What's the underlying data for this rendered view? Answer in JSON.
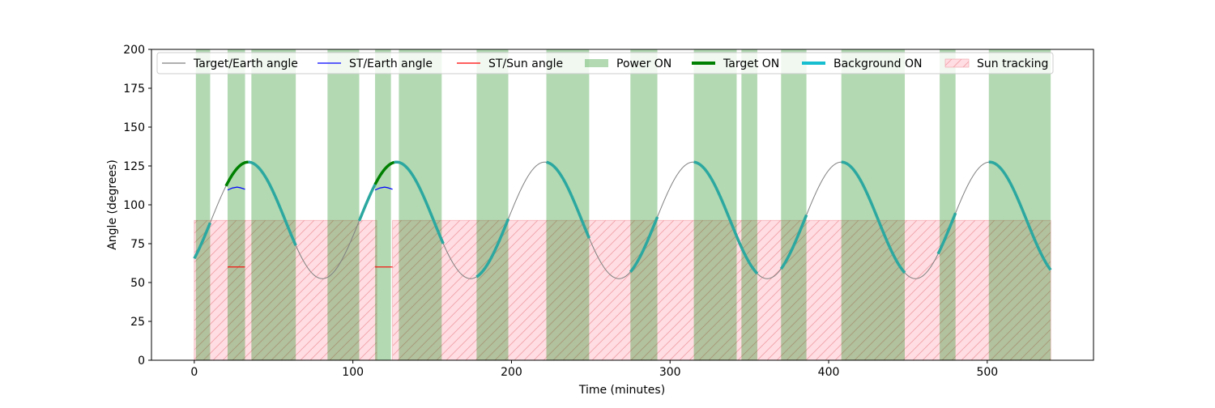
{
  "chart_data": {
    "type": "line",
    "title": "",
    "xlabel": "Time (minutes)",
    "ylabel": "Angle (degrees)",
    "xlim": [
      -27,
      567
    ],
    "ylim": [
      0,
      200
    ],
    "xticks": [
      0,
      100,
      200,
      300,
      400,
      500
    ],
    "yticks": [
      0,
      25,
      50,
      75,
      100,
      125,
      150,
      175,
      200
    ],
    "grid": false,
    "legend_position": "top",
    "target_earth_angle": {
      "name": "Target/Earth angle",
      "color": "#808080",
      "mean": 90,
      "amplitude": 37.5,
      "period": 93.5,
      "peak_time": 34,
      "x_range": [
        0,
        540
      ]
    },
    "series": [
      {
        "name": "ST/Earth angle",
        "color": "#0000ff",
        "segments": [
          {
            "x": [
              21,
              24,
              27,
              29,
              32
            ],
            "y": [
              109.5,
              110.8,
              111.4,
              111.0,
              110.0
            ]
          },
          {
            "x": [
              114,
              117,
              120,
              122,
              125
            ],
            "y": [
              109.5,
              110.8,
              111.4,
              111.0,
              110.0
            ]
          }
        ]
      },
      {
        "name": "ST/Sun angle",
        "color": "#ff0000",
        "segments": [
          {
            "x": [
              21,
              32
            ],
            "y": [
              60,
              60
            ]
          },
          {
            "x": [
              114,
              125
            ],
            "y": [
              60,
              60
            ]
          }
        ]
      }
    ],
    "power_on_intervals": [
      [
        1,
        10
      ],
      [
        21,
        32
      ],
      [
        36,
        64
      ],
      [
        84,
        104
      ],
      [
        114,
        124
      ],
      [
        129,
        156
      ],
      [
        178,
        198
      ],
      [
        222,
        249
      ],
      [
        275,
        292
      ],
      [
        315,
        342
      ],
      [
        345,
        355
      ],
      [
        370,
        386
      ],
      [
        408,
        448
      ],
      [
        470,
        480
      ],
      [
        501,
        540
      ]
    ],
    "target_on_intervals": [
      [
        20,
        34
      ],
      [
        114,
        126
      ]
    ],
    "background_on_intervals": [
      [
        0,
        10
      ],
      [
        34,
        64
      ],
      [
        104,
        114
      ],
      [
        126,
        157
      ],
      [
        178,
        198
      ],
      [
        222,
        249
      ],
      [
        275,
        292
      ],
      [
        315,
        355
      ],
      [
        370,
        386
      ],
      [
        408,
        448
      ],
      [
        469,
        480
      ],
      [
        501,
        540
      ]
    ],
    "sun_tracking_intervals": [
      [
        0,
        115
      ],
      [
        125,
        540
      ]
    ],
    "sun_tracking_level": 90,
    "colors": {
      "power_on": "#b3d9b3",
      "target_on": "#008000",
      "background_on": "#2ca8a0",
      "sun_tracking_fill": "#ffdde2",
      "sun_tracking_hatch": "#f0a0a8"
    },
    "legend": [
      {
        "label": "Target/Earth angle",
        "kind": "line",
        "color": "#808080"
      },
      {
        "label": "ST/Earth angle",
        "kind": "line",
        "color": "#0000ff"
      },
      {
        "label": "ST/Sun angle",
        "kind": "line",
        "color": "#ff0000"
      },
      {
        "label": "Power ON",
        "kind": "patch",
        "color": "#b3d9b3"
      },
      {
        "label": "Target ON",
        "kind": "thick",
        "color": "#008000"
      },
      {
        "label": "Background ON",
        "kind": "thick",
        "color": "#17becf"
      },
      {
        "label": "Sun tracking",
        "kind": "hatch",
        "color": "#ffdde2"
      }
    ]
  }
}
